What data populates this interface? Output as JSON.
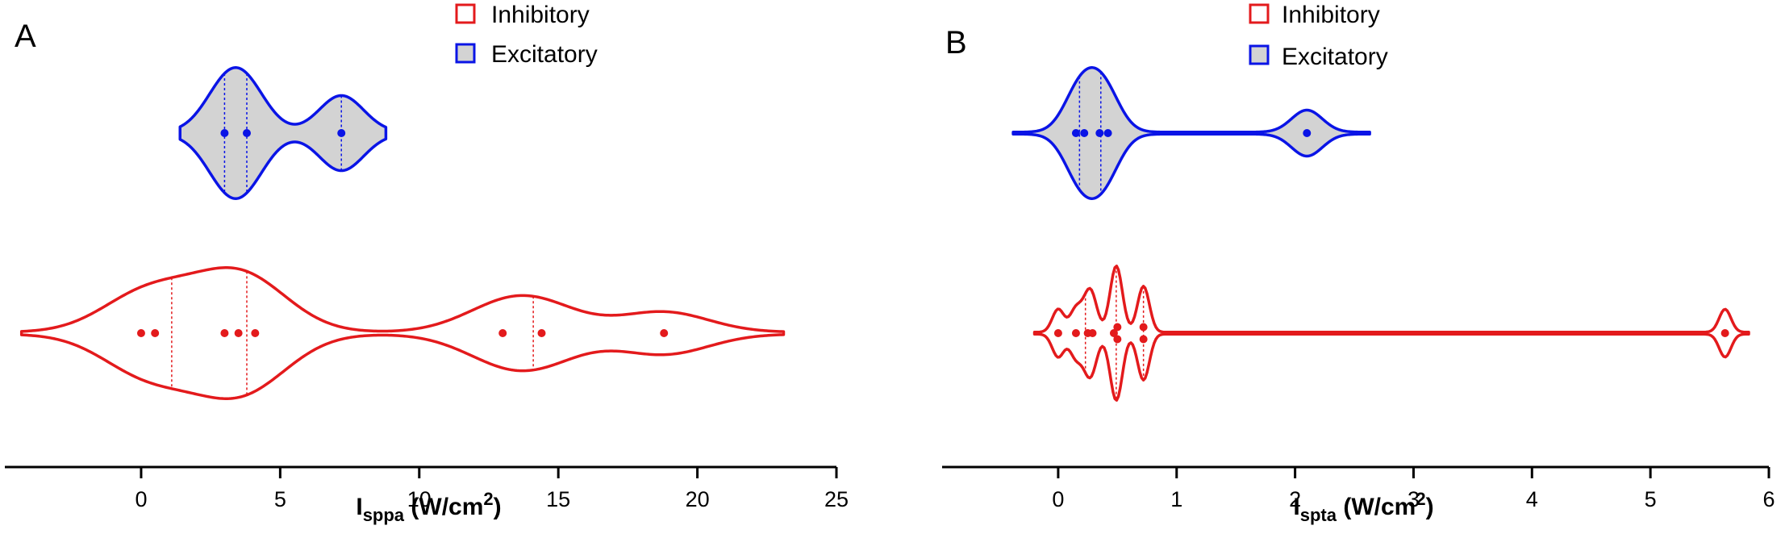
{
  "chart_data": [
    {
      "panel": "A",
      "type": "violin",
      "xlabel": "I",
      "xlabel_sub": "sppa",
      "xlabel_unit_pre": " (W/cm",
      "xlabel_unit_sup": "2",
      "xlabel_unit_post": ")",
      "xlim": [
        -4.9,
        25
      ],
      "xticks": [
        0,
        5,
        10,
        15,
        20,
        25
      ],
      "legend": [
        {
          "label": "Inhibitory",
          "color": "#e31a1c",
          "fill": "#ffffff"
        },
        {
          "label": "Excitatory",
          "color": "#0a14e6",
          "fill": "#d3d3d3"
        }
      ],
      "legend_position": "top",
      "series": [
        {
          "name": "Excitatory",
          "color": "#0a14e6",
          "fill": "#d3d3d3",
          "points": [
            3.0,
            3.8,
            7.2
          ],
          "quartile_lines": [
            3.0,
            3.8,
            7.2
          ],
          "extent": [
            1.4,
            8.8
          ],
          "bandwidth": 0.8
        },
        {
          "name": "Inhibitory",
          "color": "#e31a1c",
          "fill": "#ffffff",
          "points": [
            0.0,
            0.5,
            3.0,
            3.5,
            4.1,
            13.0,
            14.4,
            18.8
          ],
          "quartile_lines": [
            1.1,
            3.8,
            14.1
          ],
          "extent": [
            -4.3,
            23.1
          ],
          "bandwidth": 1.6
        }
      ]
    },
    {
      "panel": "B",
      "type": "violin",
      "xlabel": "I",
      "xlabel_sub": "spta",
      "xlabel_unit_pre": " (W/cm",
      "xlabel_unit_sup": "2",
      "xlabel_unit_post": ")",
      "xlim": [
        -0.98,
        6
      ],
      "xticks": [
        0,
        1,
        2,
        3,
        4,
        5,
        6
      ],
      "legend": [
        {
          "label": "Inhibitory",
          "color": "#e31a1c",
          "fill": "#ffffff"
        },
        {
          "label": "Excitatory",
          "color": "#0a14e6",
          "fill": "#d3d3d3"
        }
      ],
      "legend_position": "top",
      "series": [
        {
          "name": "Excitatory",
          "color": "#0a14e6",
          "fill": "#d3d3d3",
          "points": [
            0.15,
            0.22,
            0.35,
            0.42,
            2.1
          ],
          "quartile_lines": [
            0.18,
            0.36
          ],
          "extent": [
            -0.38,
            2.63
          ],
          "bandwidth": 0.13
        },
        {
          "name": "Inhibitory",
          "color": "#e31a1c",
          "fill": "#ffffff",
          "points": [
            0.0,
            0.15,
            0.25,
            0.29,
            0.47,
            0.5,
            0.5,
            0.72,
            0.72,
            5.63
          ],
          "quartile_lines": [
            0.23,
            0.49,
            0.72
          ],
          "extent": [
            -0.2,
            5.83
          ],
          "bandwidth": 0.05
        }
      ]
    }
  ]
}
